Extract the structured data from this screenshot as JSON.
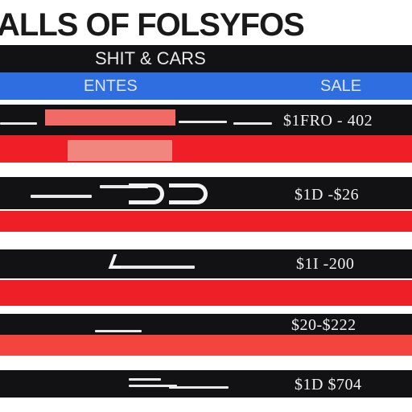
{
  "title": "ALLS OF FOLSYFOS",
  "subheader": "SHIT & CARS",
  "columns": {
    "left": "ENTES",
    "right": "SALE"
  },
  "rows": [
    {
      "price": "$1FRO - 402"
    },
    {
      "price": "$1D -$26"
    },
    {
      "price": "$1I -200"
    },
    {
      "price": "$20-$222"
    },
    {
      "price": "$1D $704"
    }
  ],
  "colors": {
    "dark_band": "#121214",
    "red_band": "#ee1f27",
    "blue_band": "#2f6ee0",
    "light_red": "#f0867e",
    "pink_red": "#f26a66"
  }
}
